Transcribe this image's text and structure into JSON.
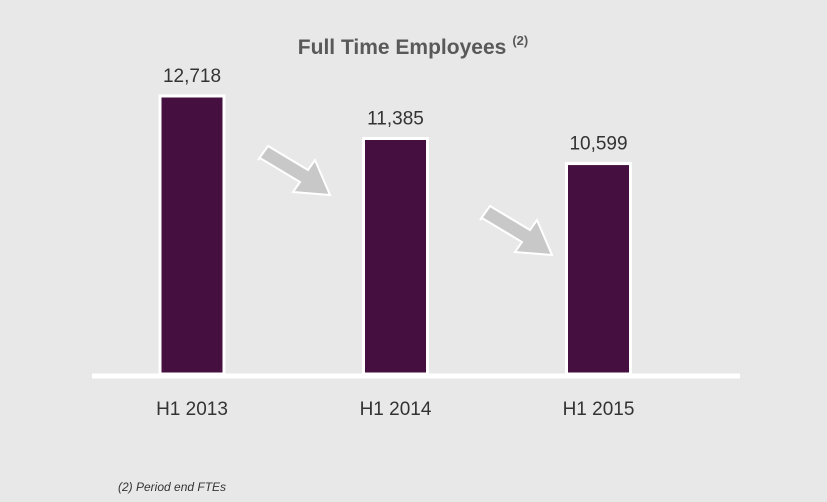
{
  "chart_data": {
    "type": "bar",
    "title": "Full Time Employees",
    "title_superscript": "(2)",
    "categories": [
      "H1 2013",
      "H1 2014",
      "H1 2015"
    ],
    "values": [
      12718,
      11385,
      10599
    ],
    "value_labels": [
      "12,718",
      "11,385",
      "10,599"
    ],
    "color": "#45103f",
    "ylim": [
      4000,
      13000
    ],
    "footnote": "(2) Period end FTEs"
  }
}
